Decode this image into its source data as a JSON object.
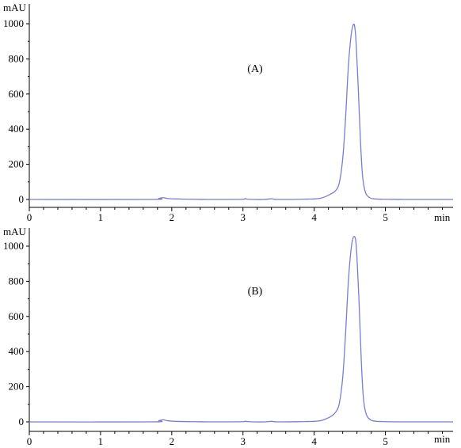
{
  "chart_data": [
    {
      "type": "line",
      "panel_label": "(A)",
      "ylabel": "mAU",
      "xlabel": "min",
      "xlim": [
        0,
        5.95
      ],
      "ylim": [
        -50,
        1050
      ],
      "xticks": [
        0,
        1,
        2,
        3,
        4,
        5
      ],
      "yticks": [
        0,
        200,
        400,
        600,
        800,
        1000
      ],
      "grid": false,
      "series": [
        {
          "color": "#7b7bd6",
          "x": [
            0,
            1.7,
            1.82,
            1.88,
            1.95,
            2.05,
            2.3,
            2.5,
            2.7,
            3.0,
            3.03,
            3.08,
            3.3,
            3.4,
            3.48,
            3.8,
            3.9,
            4.0,
            4.1,
            4.18,
            4.25,
            4.3,
            4.35,
            4.4,
            4.44,
            4.48,
            4.52,
            4.55,
            4.57,
            4.59,
            4.62,
            4.65,
            4.68,
            4.72,
            4.78,
            4.85,
            5.0,
            5.3,
            5.6,
            5.95
          ],
          "y": [
            0,
            0,
            6,
            10,
            5,
            3,
            1,
            0,
            0,
            1,
            5,
            1,
            0,
            4,
            0,
            1,
            2,
            3,
            8,
            20,
            35,
            50,
            90,
            230,
            460,
            760,
            940,
            995,
            980,
            880,
            620,
            330,
            130,
            40,
            10,
            3,
            1,
            0,
            0,
            0
          ]
        }
      ]
    },
    {
      "type": "line",
      "panel_label": "(B)",
      "ylabel": "mAU",
      "xlabel": "min",
      "xlim": [
        0,
        5.95
      ],
      "ylim": [
        -50,
        1050
      ],
      "xticks": [
        0,
        1,
        2,
        3,
        4,
        5
      ],
      "yticks": [
        0,
        200,
        400,
        600,
        800,
        1000
      ],
      "grid": false,
      "series": [
        {
          "color": "#7b7bd6",
          "x": [
            0,
            1.7,
            1.82,
            1.88,
            1.95,
            2.05,
            2.3,
            2.5,
            2.7,
            3.0,
            3.03,
            3.08,
            3.3,
            3.4,
            3.48,
            3.8,
            3.9,
            4.0,
            4.1,
            4.18,
            4.25,
            4.3,
            4.35,
            4.4,
            4.44,
            4.48,
            4.52,
            4.55,
            4.58,
            4.6,
            4.63,
            4.66,
            4.69,
            4.73,
            4.79,
            4.86,
            5.0,
            5.3,
            5.6,
            5.95
          ],
          "y": [
            0,
            0,
            7,
            12,
            6,
            3,
            1,
            0,
            0,
            1,
            4,
            1,
            0,
            3,
            0,
            1,
            2,
            3,
            8,
            20,
            35,
            55,
            100,
            250,
            500,
            800,
            990,
            1050,
            1040,
            940,
            680,
            360,
            140,
            45,
            12,
            4,
            1,
            0,
            0,
            0
          ]
        }
      ]
    }
  ]
}
